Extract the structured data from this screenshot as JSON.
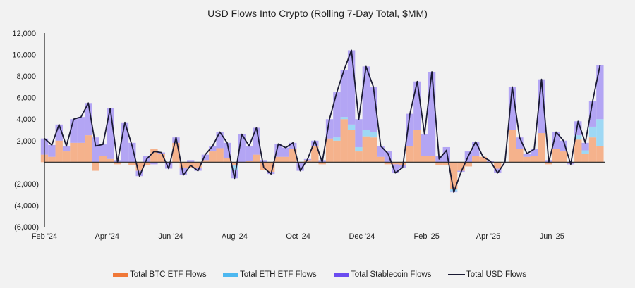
{
  "chart_data": {
    "type": "bar",
    "stacked": true,
    "title": "USD Flows Into Crypto (Rolling 7-Day Total, $MM)",
    "xlabel": "",
    "ylabel": "",
    "ylim": [
      -6000,
      12000
    ],
    "yticks": [
      -6000,
      -4000,
      -2000,
      0,
      2000,
      4000,
      6000,
      8000,
      10000,
      12000
    ],
    "ytick_labels": [
      "(6,000)",
      "(4,000)",
      "(2,000)",
      "-",
      "2,000",
      "4,000",
      "6,000",
      "8,000",
      "10,000",
      "12,000"
    ],
    "xtick_dates": [
      "2024-02-01",
      "2024-04-01",
      "2024-06-01",
      "2024-08-01",
      "2024-10-01",
      "2024-12-01",
      "2025-02-01",
      "2025-04-01",
      "2025-06-01"
    ],
    "xtick_labels": [
      "Feb '24",
      "Apr '24",
      "Jun '24",
      "Aug '24",
      "Oct '24",
      "Dec '24",
      "Feb '25",
      "Apr '25",
      "Jun '25"
    ],
    "grid": false,
    "legend_position": "bottom",
    "dates": [
      "2024-02-01",
      "2024-02-08",
      "2024-02-15",
      "2024-02-22",
      "2024-02-29",
      "2024-03-07",
      "2024-03-14",
      "2024-03-21",
      "2024-03-28",
      "2024-04-04",
      "2024-04-11",
      "2024-04-18",
      "2024-04-25",
      "2024-05-02",
      "2024-05-09",
      "2024-05-16",
      "2024-05-23",
      "2024-05-30",
      "2024-06-06",
      "2024-06-13",
      "2024-06-20",
      "2024-06-27",
      "2024-07-04",
      "2024-07-11",
      "2024-07-18",
      "2024-07-25",
      "2024-08-01",
      "2024-08-08",
      "2024-08-15",
      "2024-08-22",
      "2024-08-29",
      "2024-09-05",
      "2024-09-12",
      "2024-09-19",
      "2024-09-26",
      "2024-10-03",
      "2024-10-10",
      "2024-10-17",
      "2024-10-24",
      "2024-10-31",
      "2024-11-07",
      "2024-11-14",
      "2024-11-21",
      "2024-11-28",
      "2024-12-05",
      "2024-12-12",
      "2024-12-19",
      "2024-12-26",
      "2025-01-02",
      "2025-01-09",
      "2025-01-16",
      "2025-01-23",
      "2025-01-30",
      "2025-02-06",
      "2025-02-13",
      "2025-02-20",
      "2025-02-27",
      "2025-03-06",
      "2025-03-13",
      "2025-03-20",
      "2025-03-27",
      "2025-04-03",
      "2025-04-10",
      "2025-04-17",
      "2025-04-24",
      "2025-05-01",
      "2025-05-08",
      "2025-05-15",
      "2025-05-22",
      "2025-05-29",
      "2025-06-05",
      "2025-06-12",
      "2025-06-19",
      "2025-06-26",
      "2025-07-03",
      "2025-07-10",
      "2025-07-17"
    ],
    "series": [
      {
        "name": "Total BTC ETF Flows",
        "kind": "bar",
        "color": "#F07838",
        "values": [
          700,
          500,
          2000,
          1000,
          1800,
          1800,
          2500,
          -800,
          600,
          300,
          -200,
          0,
          -300,
          -800,
          -300,
          1200,
          800,
          0,
          1800,
          -500,
          -500,
          -500,
          200,
          1000,
          1300,
          400,
          -300,
          0,
          100,
          700,
          -700,
          -900,
          500,
          500,
          1200,
          -100,
          200,
          1500,
          -200,
          2200,
          2000,
          4000,
          3000,
          1000,
          2400,
          2300,
          500,
          -200,
          -200,
          -300,
          1500,
          3000,
          600,
          600,
          -300,
          -300,
          -2500,
          -800,
          -400,
          600,
          500,
          0,
          -600,
          0,
          3000,
          1200,
          500,
          600,
          2700,
          -200,
          1200,
          1000,
          -100,
          2100,
          800,
          2300,
          1500
        ]
      },
      {
        "name": "Total ETH ETF Flows",
        "kind": "bar",
        "color": "#4DB8F0",
        "values": [
          0,
          0,
          0,
          0,
          0,
          0,
          0,
          0,
          0,
          0,
          0,
          0,
          0,
          0,
          0,
          0,
          0,
          0,
          0,
          0,
          0,
          0,
          0,
          0,
          0,
          0,
          -400,
          0,
          0,
          0,
          0,
          0,
          0,
          0,
          0,
          0,
          0,
          0,
          0,
          0,
          300,
          200,
          500,
          400,
          600,
          500,
          0,
          0,
          0,
          0,
          0,
          0,
          0,
          0,
          0,
          0,
          -200,
          0,
          0,
          0,
          0,
          0,
          0,
          0,
          0,
          0,
          0,
          0,
          0,
          0,
          0,
          0,
          0,
          400,
          300,
          1000,
          2500
        ]
      },
      {
        "name": "Total Stablecoin Flows",
        "kind": "bar",
        "color": "#6B4CF0",
        "values": [
          1500,
          1100,
          1500,
          500,
          2200,
          2400,
          3000,
          2300,
          1050,
          4700,
          200,
          3700,
          1800,
          -500,
          600,
          -200,
          100,
          -600,
          500,
          -700,
          200,
          -300,
          500,
          500,
          1500,
          1400,
          -800,
          2600,
          1400,
          2500,
          200,
          -200,
          1200,
          850,
          600,
          -700,
          100,
          500,
          200,
          1800,
          4200,
          4400,
          6900,
          2600,
          5900,
          4200,
          1000,
          1000,
          -800,
          -200,
          3000,
          4500,
          2000,
          7800,
          600,
          1400,
          -100,
          -100,
          1000,
          1300,
          0,
          100,
          -400,
          0,
          4000,
          1100,
          300,
          600,
          5000,
          200,
          1600,
          1000,
          -100,
          1300,
          700,
          2400,
          5000
        ]
      },
      {
        "name": "Total USD Flows",
        "kind": "line",
        "color": "#1A1A33",
        "values": [
          2200,
          1600,
          3500,
          1500,
          4000,
          4200,
          5500,
          1500,
          1650,
          5000,
          0,
          3700,
          1500,
          -1300,
          300,
          1000,
          900,
          -600,
          2300,
          -1200,
          -300,
          -800,
          700,
          1500,
          2800,
          1800,
          -1500,
          2600,
          1500,
          3200,
          -500,
          -1100,
          1700,
          1350,
          1800,
          -800,
          300,
          2000,
          0,
          4000,
          6500,
          8600,
          10400,
          4000,
          8900,
          7000,
          1500,
          800,
          -1000,
          -500,
          4500,
          7500,
          2600,
          8400,
          300,
          1100,
          -2800,
          -900,
          600,
          1900,
          500,
          100,
          -1000,
          0,
          7000,
          2300,
          800,
          1200,
          7700,
          0,
          2800,
          2000,
          -200,
          3800,
          1800,
          5700,
          9000
        ]
      }
    ]
  },
  "colors": {
    "background": "#F2F2F2",
    "btc_bar_fill": "#F6A77A",
    "eth_bar_fill": "#8FD3F5",
    "stable_bar_fill": "#A898F5",
    "axis": "#222222"
  }
}
